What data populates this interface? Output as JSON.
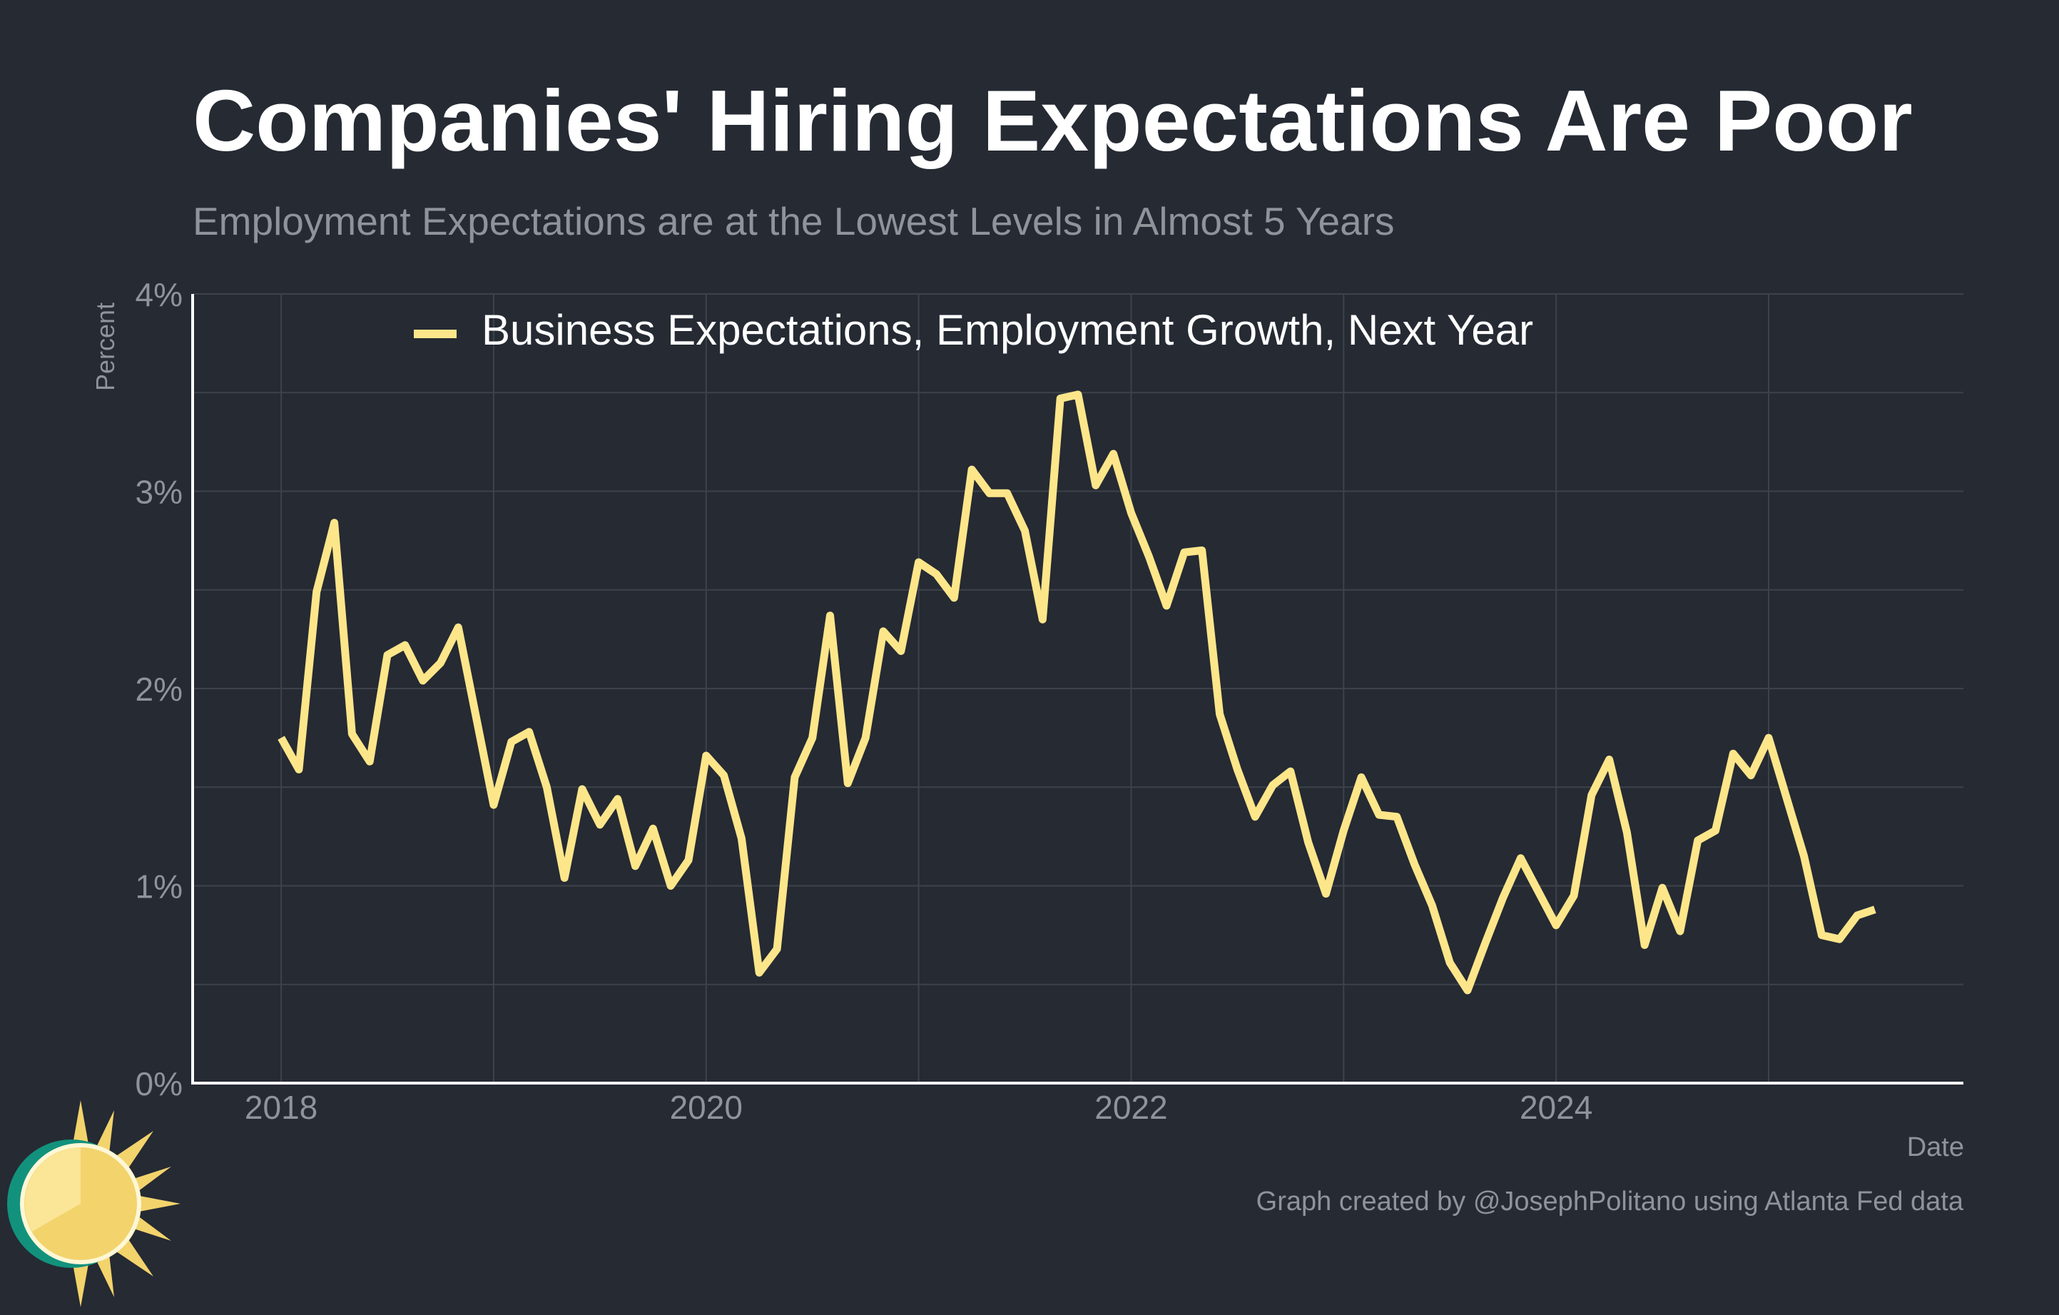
{
  "title": "Companies' Hiring Expectations Are Poor",
  "subtitle": "Employment Expectations are at the Lowest Levels in Almost 5 Years",
  "credit": "Graph created by @JosephPolitano using Atlanta Fed data",
  "colors": {
    "background": "#252a33",
    "line": "#fde68a",
    "grid": "#3d424b",
    "axis": "#ffffff",
    "text_muted": "#8f939a"
  },
  "chart_data": {
    "type": "line",
    "title": "Companies' Hiring Expectations Are Poor",
    "subtitle": "Employment Expectations are at the Lowest Levels in Almost 5 Years",
    "xlabel": "Date",
    "ylabel": "Percent",
    "x_ticks": [
      "2018",
      "2020",
      "2022",
      "2024"
    ],
    "y_ticks": [
      "0%",
      "1%",
      "2%",
      "3%",
      "4%"
    ],
    "ylim": [
      0,
      4
    ],
    "xlim": [
      "2017-08",
      "2025-12"
    ],
    "grid": true,
    "legend_position": "top-left",
    "series": [
      {
        "name": "Business Expectations, Employment Growth, Next Year",
        "x": [
          "2018-01",
          "2018-02",
          "2018-03",
          "2018-04",
          "2018-05",
          "2018-06",
          "2018-07",
          "2018-08",
          "2018-09",
          "2018-10",
          "2018-11",
          "2018-12",
          "2019-01",
          "2019-02",
          "2019-03",
          "2019-04",
          "2019-05",
          "2019-06",
          "2019-07",
          "2019-08",
          "2019-09",
          "2019-10",
          "2019-11",
          "2019-12",
          "2020-01",
          "2020-02",
          "2020-03",
          "2020-04",
          "2020-05",
          "2020-06",
          "2020-07",
          "2020-08",
          "2020-09",
          "2020-10",
          "2020-11",
          "2020-12",
          "2021-01",
          "2021-02",
          "2021-03",
          "2021-04",
          "2021-05",
          "2021-06",
          "2021-07",
          "2021-08",
          "2021-09",
          "2021-10",
          "2021-11",
          "2021-12",
          "2022-01",
          "2022-02",
          "2022-03",
          "2022-04",
          "2022-05",
          "2022-06",
          "2022-07",
          "2022-08",
          "2022-09",
          "2022-10",
          "2022-11",
          "2022-12",
          "2023-01",
          "2023-02",
          "2023-03",
          "2023-04",
          "2023-05",
          "2023-06",
          "2023-07",
          "2023-08",
          "2023-09",
          "2023-10",
          "2023-11",
          "2023-12",
          "2024-01",
          "2024-02",
          "2024-03",
          "2024-04",
          "2024-05",
          "2024-06",
          "2024-07",
          "2024-08",
          "2024-09",
          "2024-10",
          "2024-11",
          "2024-12",
          "2025-01",
          "2025-02",
          "2025-03",
          "2025-04",
          "2025-05",
          "2025-06",
          "2025-07"
        ],
        "values": [
          1.75,
          1.59,
          2.49,
          2.84,
          1.77,
          1.63,
          2.17,
          2.22,
          2.04,
          2.13,
          2.31,
          1.86,
          1.41,
          1.73,
          1.78,
          1.5,
          1.04,
          1.49,
          1.31,
          1.44,
          1.1,
          1.29,
          1.0,
          1.13,
          1.66,
          1.56,
          1.24,
          0.56,
          0.68,
          1.55,
          1.75,
          2.37,
          1.52,
          1.75,
          2.29,
          2.19,
          2.64,
          2.58,
          2.46,
          3.11,
          2.99,
          2.99,
          2.8,
          2.35,
          3.47,
          3.49,
          3.03,
          3.19,
          2.89,
          2.67,
          2.42,
          2.69,
          2.7,
          1.87,
          1.59,
          1.35,
          1.51,
          1.58,
          1.22,
          0.96,
          1.28,
          1.55,
          1.36,
          1.35,
          1.11,
          0.9,
          0.61,
          0.47,
          0.71,
          0.94,
          1.14,
          0.97,
          0.8,
          0.95,
          1.46,
          1.64,
          1.27,
          0.7,
          0.99,
          0.77,
          1.23,
          1.28,
          1.67,
          1.56,
          1.75,
          1.45,
          1.15,
          0.75,
          0.73,
          0.85,
          0.88
        ]
      }
    ]
  }
}
